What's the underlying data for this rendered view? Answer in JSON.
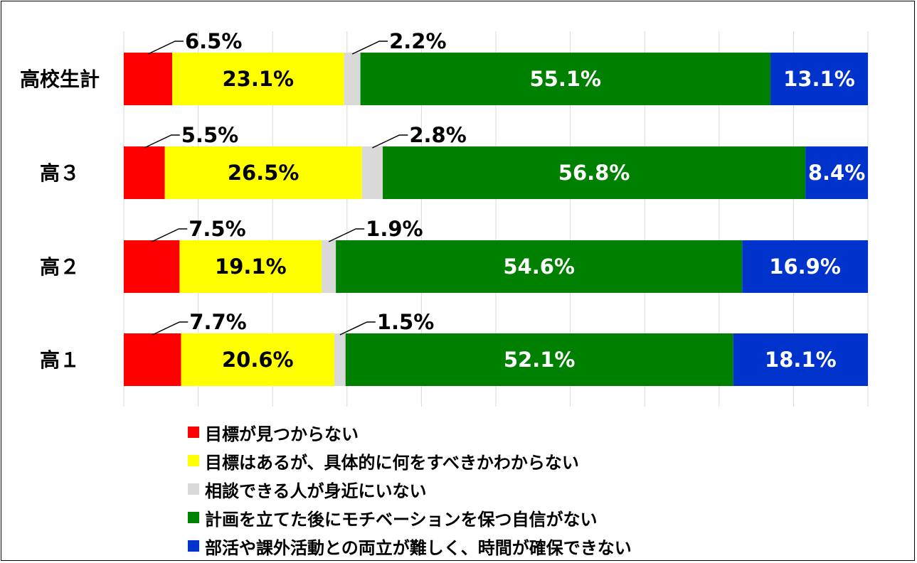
{
  "chart_data": {
    "type": "bar",
    "orientation": "horizontal",
    "stacked": true,
    "percent": true,
    "categories": [
      "高校生計",
      "高３",
      "高２",
      "高１"
    ],
    "series": [
      {
        "name": "目標が見つからない",
        "color": "#ff0000",
        "label_color": "#000000",
        "label_style": "callout",
        "values": [
          6.5,
          5.5,
          7.5,
          7.7
        ]
      },
      {
        "name": "目標はあるが、具体的に何をすべきかわからない",
        "color": "#ffff00",
        "label_color": "#000000",
        "label_style": "inside",
        "values": [
          23.1,
          26.5,
          19.1,
          20.6
        ]
      },
      {
        "name": "相談できる人が身近にいない",
        "color": "#d9d9d9",
        "label_color": "#000000",
        "label_style": "callout",
        "values": [
          2.2,
          2.8,
          1.9,
          1.5
        ]
      },
      {
        "name": "計画を立てた後にモチベーションを保つ自信がない",
        "color": "#008000",
        "label_color": "#ffffff",
        "label_style": "inside",
        "values": [
          55.1,
          56.8,
          54.6,
          52.1
        ]
      },
      {
        "name": "部活や課外活動との両立が難しく、時間が確保できない",
        "color": "#0033cc",
        "label_color": "#ffffff",
        "label_style": "inside",
        "values": [
          13.1,
          8.4,
          16.9,
          18.1
        ]
      }
    ],
    "value_suffix": "%",
    "xlim": [
      0,
      100
    ],
    "grid": "vertical",
    "legend_position": "bottom"
  }
}
